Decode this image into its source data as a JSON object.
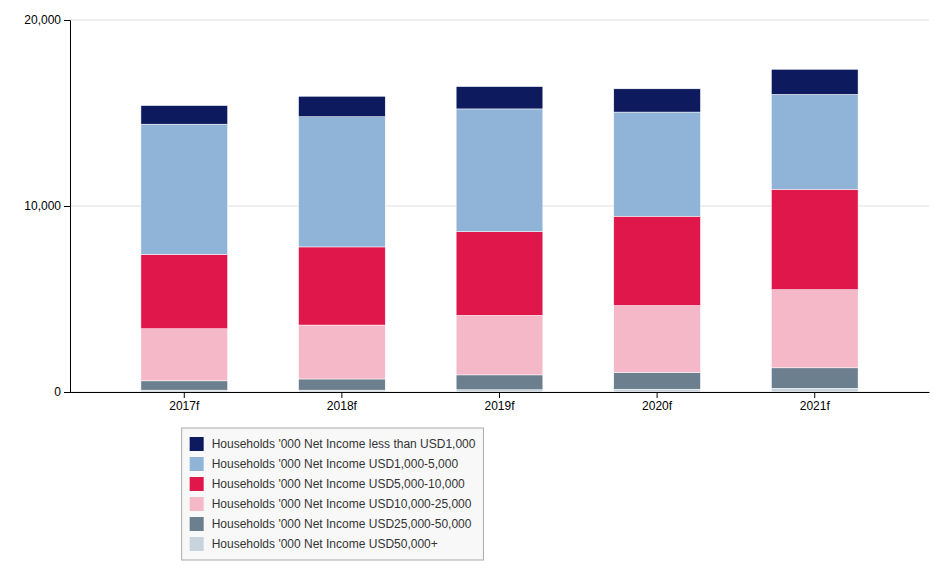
{
  "chart_data": {
    "type": "bar",
    "stacked": true,
    "categories": [
      "2017f",
      "2018f",
      "2019f",
      "2020f",
      "2021f"
    ],
    "series": [
      {
        "name": "Households '000 Net Income USD50,000+",
        "color": "#c8d4dc",
        "values": [
          100,
          100,
          120,
          150,
          200
        ]
      },
      {
        "name": "Households '000 Net Income USD25,000-50,000",
        "color": "#6b7f8e",
        "values": [
          500,
          600,
          800,
          900,
          1100
        ]
      },
      {
        "name": "Households '000 Net Income USD10,000-25,000",
        "color": "#f5b8c8",
        "values": [
          2800,
          2900,
          3200,
          3600,
          4200
        ]
      },
      {
        "name": "Households '000 Net Income USD5,000-10,000",
        "color": "#e0174a",
        "values": [
          4000,
          4200,
          4500,
          4800,
          5400
        ]
      },
      {
        "name": "Households '000 Net Income USD1,000-5,000",
        "color": "#90b4d8",
        "values": [
          7000,
          7000,
          6600,
          5600,
          5100
        ]
      },
      {
        "name": "Households '000 Net Income less than USD1,000",
        "color": "#0d1b5e",
        "values": [
          1000,
          1100,
          1200,
          1250,
          1350
        ]
      }
    ],
    "ylim": [
      0,
      20000
    ],
    "yticks": [
      0,
      {
        "value": 10000,
        "label": "10,000"
      },
      {
        "value": 20000,
        "label": "20,000"
      }
    ],
    "grid": true,
    "legend": "bottom"
  }
}
